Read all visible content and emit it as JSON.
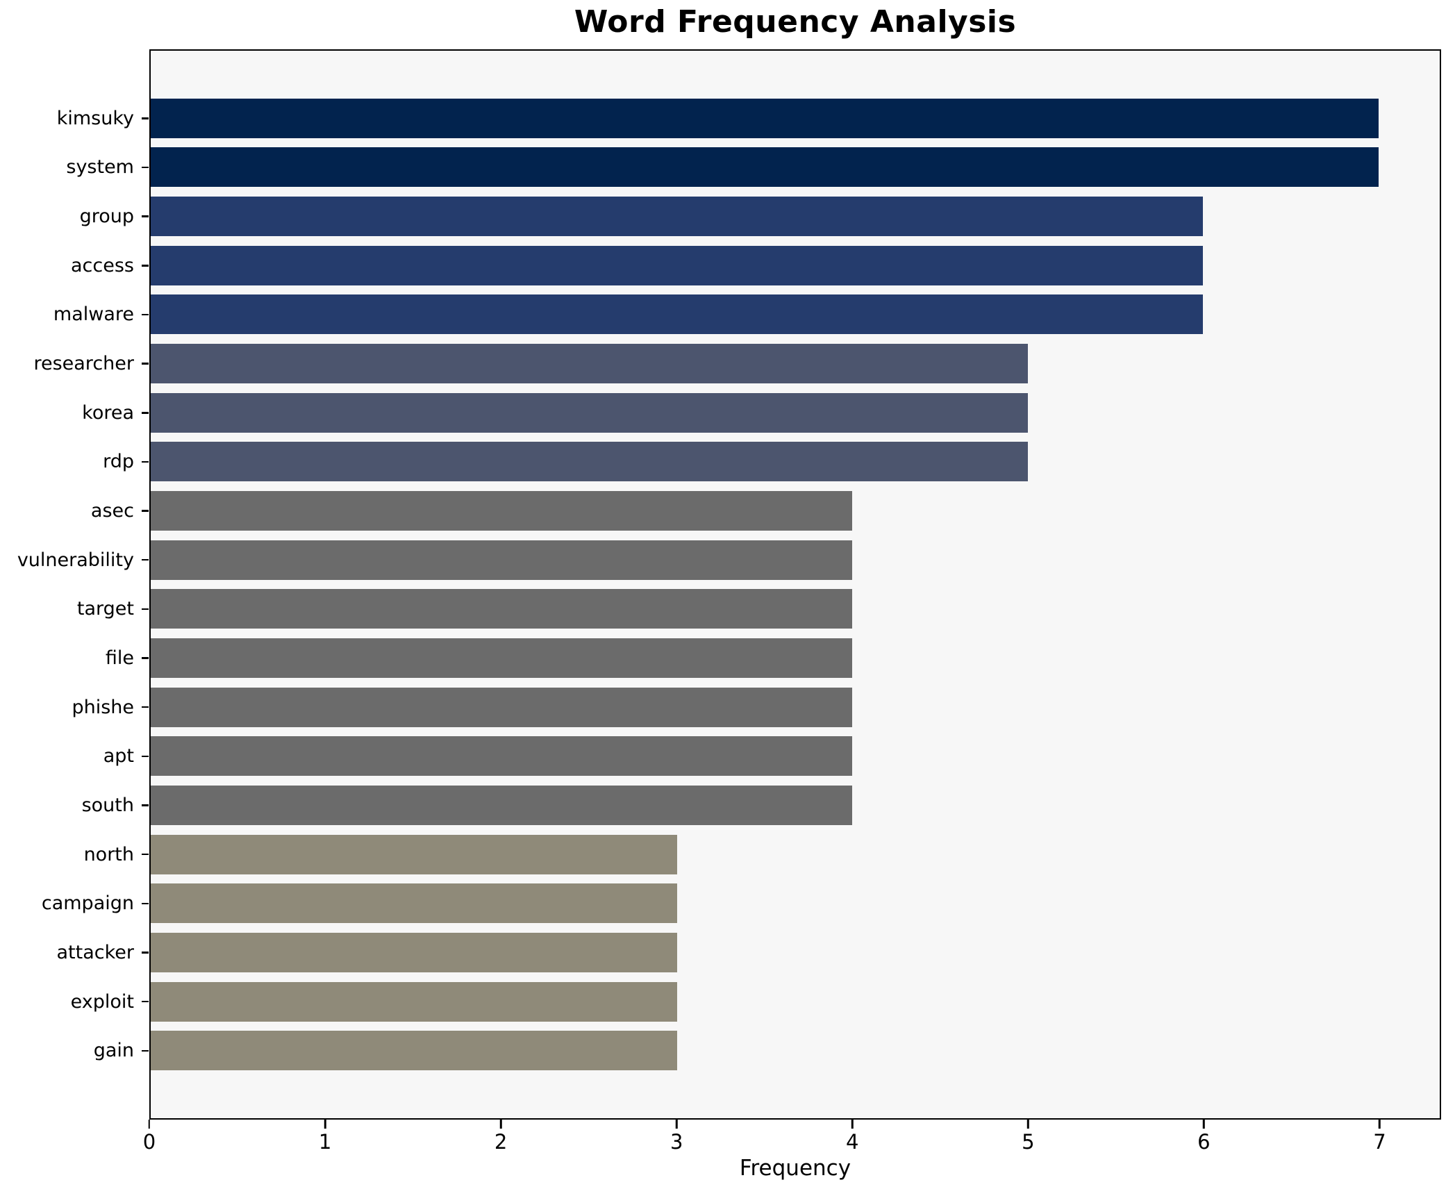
{
  "chart_data": {
    "type": "bar",
    "orientation": "horizontal",
    "title": "Word Frequency Analysis",
    "xlabel": "Frequency",
    "ylabel": "",
    "categories": [
      "kimsuky",
      "system",
      "group",
      "access",
      "malware",
      "researcher",
      "korea",
      "rdp",
      "asec",
      "vulnerability",
      "target",
      "file",
      "phishe",
      "apt",
      "south",
      "north",
      "campaign",
      "attacker",
      "exploit",
      "gain"
    ],
    "values": [
      7,
      7,
      6,
      6,
      6,
      5,
      5,
      5,
      4,
      4,
      4,
      4,
      4,
      4,
      4,
      3,
      3,
      3,
      3,
      3
    ],
    "x_ticks": [
      0,
      1,
      2,
      3,
      4,
      5,
      6,
      7
    ],
    "xlim": [
      0,
      7.35
    ],
    "grid": "off",
    "legend": "none",
    "plot_background": "#f7f7f7",
    "figure_background": "#ffffff",
    "axis_color": "#000000",
    "value_colors": {
      "7": "#02234e",
      "6": "#253c6d",
      "5": "#4c556e",
      "4": "#6b6b6b",
      "3": "#8f8a79"
    }
  }
}
